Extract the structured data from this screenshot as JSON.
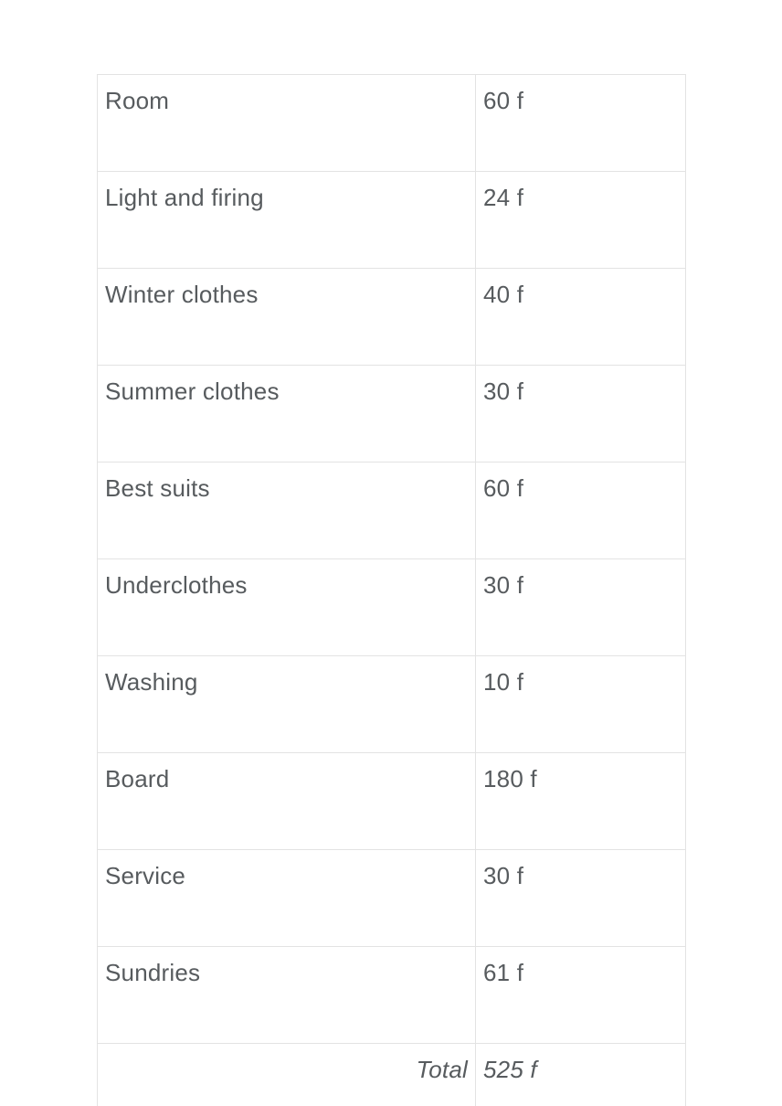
{
  "table": {
    "rows": [
      {
        "label": "Room",
        "value": "60 f"
      },
      {
        "label": "Light and firing",
        "value": "24 f"
      },
      {
        "label": "Winter clothes",
        "value": "40 f"
      },
      {
        "label": "Summer clothes",
        "value": "30 f"
      },
      {
        "label": "Best suits",
        "value": "60 f"
      },
      {
        "label": "Underclothes",
        "value": "30 f"
      },
      {
        "label": "Washing",
        "value": "10 f"
      },
      {
        "label": "Board",
        "value": "180 f"
      },
      {
        "label": "Service",
        "value": "30 f"
      },
      {
        "label": "Sundries",
        "value": "61 f"
      }
    ],
    "total_row": {
      "label": "Total",
      "value": "525 f"
    }
  },
  "colors": {
    "background": "#ffffff",
    "border": "#e3e3e3",
    "text": "#575b5e"
  }
}
